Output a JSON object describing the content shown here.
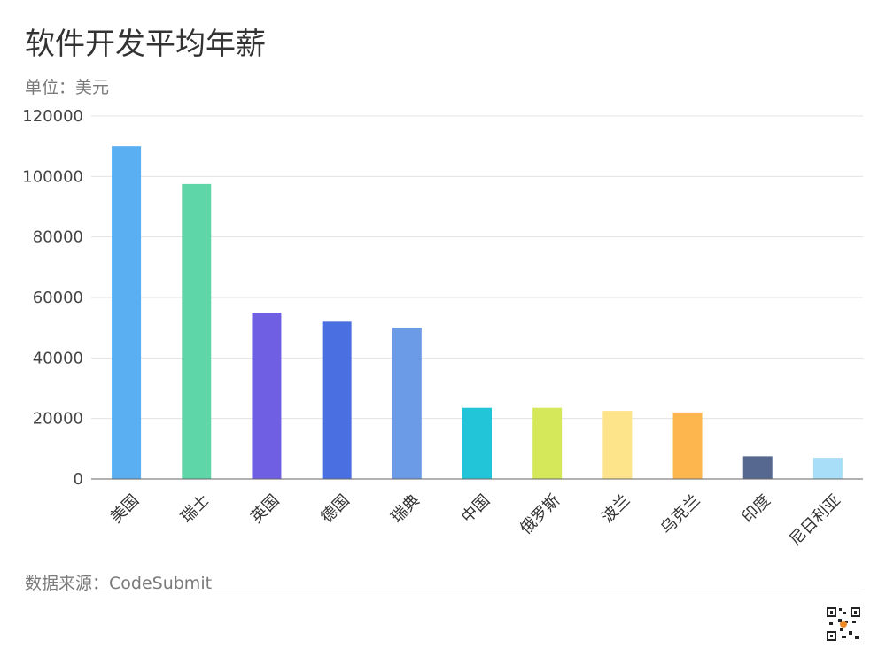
{
  "header": {
    "title": "软件开发平均年薪",
    "unit": "单位：美元"
  },
  "footer": {
    "source": "数据来源：CodeSubmit",
    "qr_icon": "qr-code-icon"
  },
  "chart_data": {
    "type": "bar",
    "title": "软件开发平均年薪",
    "subtitle": "单位：美元",
    "categories": [
      "美国",
      "瑞士",
      "英国",
      "德国",
      "瑞典",
      "中国",
      "俄罗斯",
      "波兰",
      "乌克兰",
      "印度",
      "尼日利亚"
    ],
    "values": [
      110000,
      97500,
      55000,
      52000,
      50000,
      23500,
      23500,
      22500,
      22000,
      7500,
      7000
    ],
    "colors": [
      "#5aaef2",
      "#5fd6a8",
      "#6e5fe3",
      "#4a6fe0",
      "#6b9be6",
      "#22c4d8",
      "#d4e85a",
      "#fde38a",
      "#fdb54e",
      "#56688f",
      "#a8def8"
    ],
    "ylim": [
      0,
      120000
    ],
    "yticks": [
      0,
      20000,
      40000,
      60000,
      80000,
      100000,
      120000
    ],
    "grid": true,
    "legend": "none"
  }
}
